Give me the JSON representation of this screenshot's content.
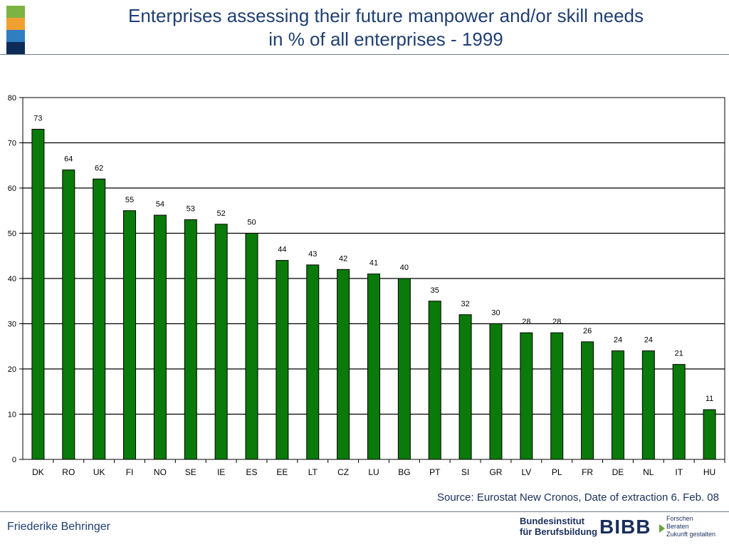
{
  "title": {
    "line1": "Enterprises assessing their future manpower and/or skill needs",
    "line2": "in % of all enterprises - 1999"
  },
  "accent_colors": [
    "#7cb342",
    "#f0a030",
    "#2f7ec1",
    "#0d2d57"
  ],
  "source": "Source: Eurostat New Cronos, Date of extraction 6. Feb. 08",
  "author": "Friederike Behringer",
  "logo": {
    "name_line1": "Bundesinstitut",
    "name_line2": "für Berufsbildung",
    "mark": "BIBB",
    "tagline": [
      "Forschen",
      "Beraten",
      "Zukunft gestalten"
    ]
  },
  "chart_data": {
    "type": "bar",
    "categories": [
      "DK",
      "RO",
      "UK",
      "FI",
      "NO",
      "SE",
      "IE",
      "ES",
      "EE",
      "LT",
      "CZ",
      "LU",
      "BG",
      "PT",
      "SI",
      "GR",
      "LV",
      "PL",
      "FR",
      "DE",
      "NL",
      "IT",
      "HU"
    ],
    "values": [
      73,
      64,
      62,
      55,
      54,
      53,
      52,
      50,
      44,
      43,
      42,
      41,
      40,
      35,
      32,
      30,
      28,
      28,
      26,
      24,
      24,
      21,
      11
    ],
    "data_labels": [
      "73",
      "64",
      "62",
      "55",
      "54",
      "53",
      "52",
      "50",
      "44",
      "43",
      "42",
      "41",
      "40",
      "35",
      "32",
      "30",
      "28",
      "28",
      "26",
      "24",
      "24",
      "21",
      "11"
    ],
    "yticks": [
      "0",
      "10",
      "20",
      "30",
      "40",
      "50",
      "60",
      "70",
      "80"
    ],
    "ylim": [
      0,
      80
    ],
    "grid": true,
    "bar_color": "#0a7a0a"
  }
}
